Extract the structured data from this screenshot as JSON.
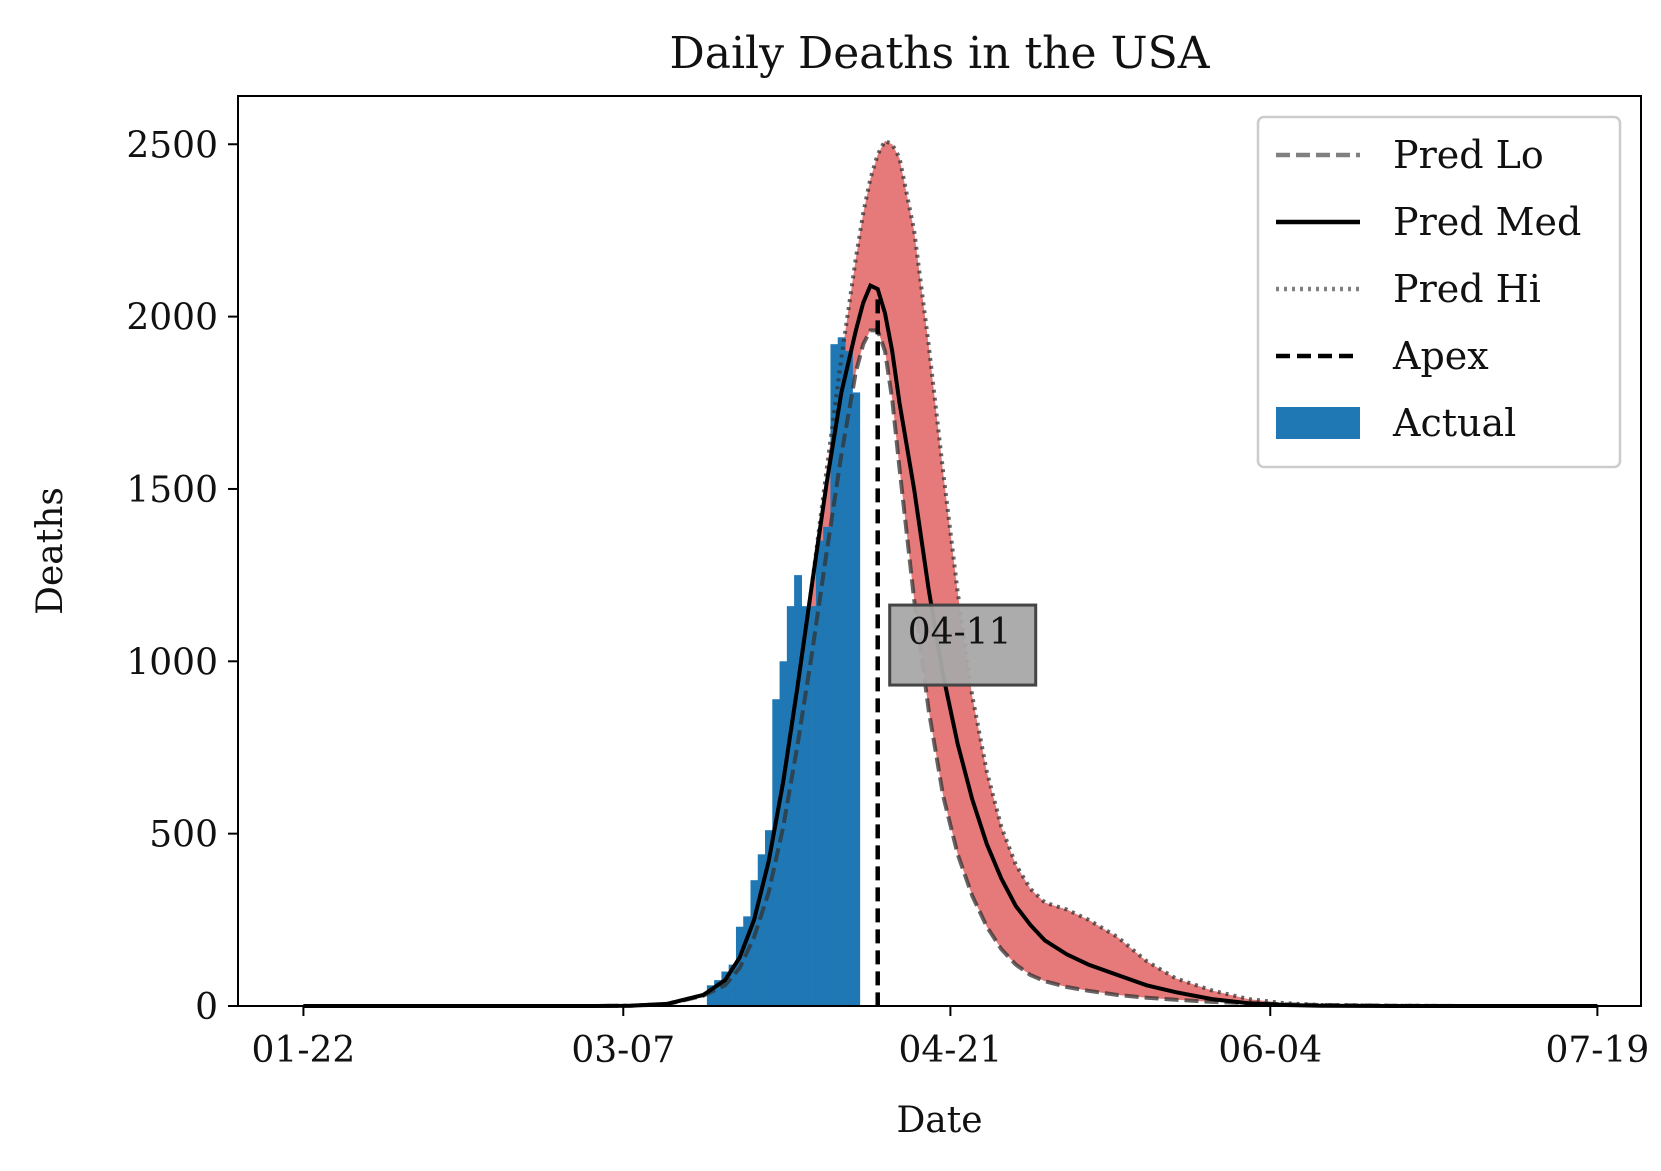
{
  "chart_data": {
    "type": "bar",
    "title": "Daily Deaths in the USA",
    "xlabel": "Date",
    "ylabel": "Deaths",
    "xlim": [
      -9,
      184
    ],
    "ylim": [
      0,
      2640
    ],
    "x_tick_labels": [
      {
        "day": 0,
        "label": "01-22"
      },
      {
        "day": 44,
        "label": "03-07"
      },
      {
        "day": 89,
        "label": "04-21"
      },
      {
        "day": 133,
        "label": "06-04"
      },
      {
        "day": 178,
        "label": "07-19"
      }
    ],
    "y_ticks": [
      0,
      500,
      1000,
      1500,
      2000,
      2500
    ],
    "grid": false,
    "legend_position": "top-right",
    "legend": [
      {
        "label": "Pred Lo",
        "style": "dashed-gray"
      },
      {
        "label": "Pred Med",
        "style": "solid-black"
      },
      {
        "label": "Pred Hi",
        "style": "dotted-gray"
      },
      {
        "label": "Apex",
        "style": "dashed-black"
      },
      {
        "label": "Actual",
        "style": "bar-blue"
      }
    ],
    "colors": {
      "actual": "#1f77b4",
      "band": "#e57373",
      "median": "#000000",
      "lo": "#555555",
      "hi": "#555555",
      "apex": "#000000",
      "annotation_bg": "#a8a8a8"
    },
    "apex": {
      "day": 79,
      "label": "04-11",
      "value": 1050
    },
    "series": [
      {
        "name": "Actual",
        "kind": "bar",
        "days": [
          56,
          57,
          58,
          59,
          60,
          61,
          62,
          63,
          64,
          65,
          66,
          67,
          68,
          69,
          70,
          71,
          72,
          73,
          74,
          75,
          76
        ],
        "values": [
          60,
          75,
          100,
          120,
          230,
          260,
          365,
          440,
          510,
          890,
          1000,
          1160,
          1250,
          1160,
          1160,
          1350,
          1390,
          1920,
          1940,
          1900,
          1780
        ]
      },
      {
        "name": "Pred Lo",
        "kind": "line",
        "days": [
          0,
          40,
          45,
          50,
          55,
          58,
          60,
          62,
          64,
          66,
          68,
          70,
          72,
          74,
          76,
          77,
          78,
          79,
          80,
          81,
          82,
          84,
          86,
          88,
          90,
          92,
          94,
          96,
          98,
          100,
          102,
          105,
          108,
          112,
          116,
          120,
          125,
          130,
          135,
          140,
          150,
          160,
          170,
          178
        ],
        "values": [
          0,
          0,
          1,
          5,
          30,
          60,
          110,
          200,
          330,
          520,
          760,
          1030,
          1320,
          1600,
          1840,
          1920,
          1960,
          1960,
          1900,
          1760,
          1560,
          1180,
          860,
          610,
          440,
          320,
          230,
          165,
          120,
          90,
          72,
          55,
          44,
          32,
          24,
          18,
          12,
          8,
          5,
          3,
          1,
          0,
          0,
          0
        ]
      },
      {
        "name": "Pred Med",
        "kind": "line",
        "days": [
          0,
          40,
          45,
          50,
          55,
          58,
          60,
          62,
          64,
          66,
          68,
          70,
          72,
          74,
          76,
          77,
          78,
          79,
          80,
          81,
          82,
          84,
          86,
          88,
          90,
          92,
          94,
          96,
          98,
          100,
          102,
          105,
          108,
          112,
          116,
          120,
          125,
          130,
          135,
          140,
          150,
          160,
          170,
          178
        ],
        "values": [
          0,
          0,
          1,
          6,
          32,
          75,
          140,
          250,
          420,
          650,
          930,
          1230,
          1520,
          1780,
          1960,
          2040,
          2090,
          2080,
          2010,
          1900,
          1750,
          1500,
          1210,
          960,
          760,
          600,
          470,
          370,
          290,
          235,
          190,
          150,
          120,
          90,
          60,
          40,
          20,
          8,
          3,
          1,
          0,
          0,
          0,
          0
        ]
      },
      {
        "name": "Pred Hi",
        "kind": "line",
        "days": [
          0,
          40,
          45,
          50,
          55,
          58,
          60,
          62,
          64,
          66,
          68,
          70,
          72,
          74,
          76,
          77,
          78,
          79,
          80,
          81,
          82,
          84,
          86,
          88,
          90,
          92,
          94,
          96,
          98,
          100,
          102,
          105,
          108,
          112,
          116,
          120,
          125,
          130,
          135,
          140,
          150,
          160,
          170,
          178
        ],
        "values": [
          0,
          0,
          1,
          6,
          32,
          75,
          140,
          250,
          420,
          650,
          930,
          1230,
          1560,
          1880,
          2170,
          2300,
          2400,
          2470,
          2510,
          2500,
          2460,
          2250,
          1920,
          1550,
          1200,
          900,
          680,
          520,
          410,
          340,
          300,
          280,
          250,
          200,
          130,
          80,
          45,
          20,
          8,
          3,
          1,
          0,
          0,
          0
        ]
      }
    ]
  }
}
